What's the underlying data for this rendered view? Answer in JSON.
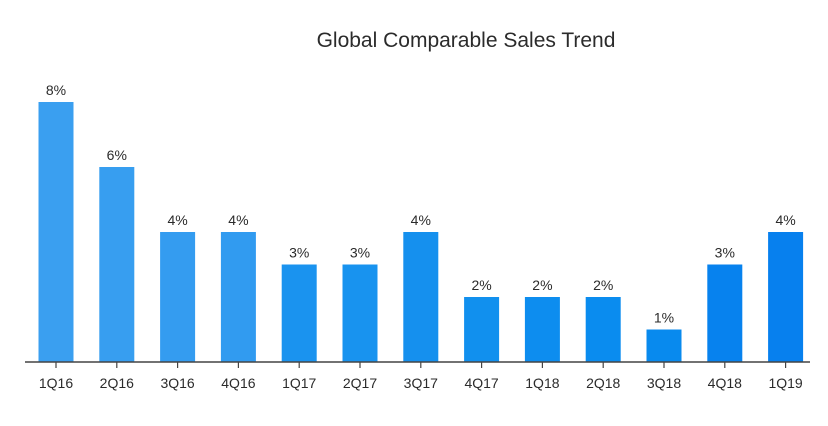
{
  "chart_data": {
    "type": "bar",
    "title": "Global Comparable Sales Trend",
    "xlabel": "",
    "ylabel": "",
    "categories": [
      "1Q16",
      "2Q16",
      "3Q16",
      "4Q16",
      "1Q17",
      "2Q17",
      "3Q17",
      "4Q17",
      "1Q18",
      "2Q18",
      "3Q18",
      "4Q18",
      "1Q19"
    ],
    "values": [
      8,
      6,
      4,
      4,
      3,
      3,
      4,
      2,
      2,
      2,
      1,
      3,
      4
    ],
    "data_labels": [
      "8%",
      "6%",
      "4%",
      "4%",
      "3%",
      "3%",
      "4%",
      "2%",
      "2%",
      "2%",
      "1%",
      "3%",
      "4%"
    ],
    "ylim": [
      0,
      8
    ],
    "grid": false,
    "legend": "none",
    "colors": {
      "bars": [
        "#3a9ff0",
        "#379ef0",
        "#349cf0",
        "#319bf0",
        "#1a93ef",
        "#1893ef",
        "#1590ee",
        "#1190ee",
        "#0d8def",
        "#0a8cef",
        "#088aee",
        "#0782ee",
        "#0780ee"
      ],
      "axis": "#444444",
      "text": "#2b2b2b"
    }
  }
}
